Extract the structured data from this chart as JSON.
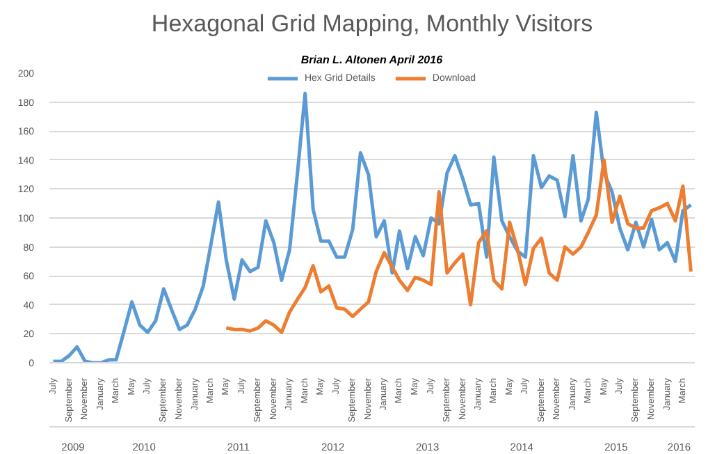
{
  "chart_data": {
    "type": "line",
    "title": "Hexagonal Grid Mapping, Monthly Visitors",
    "subtitle": "Brian L. Altonen April 2016",
    "x": [
      "2009-07",
      "2009-08",
      "2009-09",
      "2009-10",
      "2009-11",
      "2009-12",
      "2010-01",
      "2010-02",
      "2010-03",
      "2010-04",
      "2010-05",
      "2010-06",
      "2010-07",
      "2010-08",
      "2010-09",
      "2010-10",
      "2010-11",
      "2010-12",
      "2011-01",
      "2011-02",
      "2011-03",
      "2011-04",
      "2011-05",
      "2011-06",
      "2011-07",
      "2011-08",
      "2011-09",
      "2011-10",
      "2011-11",
      "2011-12",
      "2012-01",
      "2012-02",
      "2012-03",
      "2012-04",
      "2012-05",
      "2012-06",
      "2012-07",
      "2012-08",
      "2012-09",
      "2012-10",
      "2012-11",
      "2012-12",
      "2013-01",
      "2013-02",
      "2013-03",
      "2013-04",
      "2013-05",
      "2013-06",
      "2013-07",
      "2013-08",
      "2013-09",
      "2013-10",
      "2013-11",
      "2013-12",
      "2014-01",
      "2014-02",
      "2014-03",
      "2014-04",
      "2014-05",
      "2014-06",
      "2014-07",
      "2014-08",
      "2014-09",
      "2014-10",
      "2014-11",
      "2014-12",
      "2015-01",
      "2015-02",
      "2015-03",
      "2015-04",
      "2015-05",
      "2015-06",
      "2015-07",
      "2015-08",
      "2015-09",
      "2015-10",
      "2015-11",
      "2015-12",
      "2016-01",
      "2016-02",
      "2016-03",
      "2016-04"
    ],
    "series": [
      {
        "name": "Hex Grid Details",
        "color": "#5b9bd5",
        "values": [
          1,
          1,
          5,
          11,
          1,
          0,
          0,
          2,
          2,
          22,
          42,
          26,
          21,
          29,
          51,
          37,
          23,
          26,
          37,
          53,
          80,
          111,
          71,
          44,
          71,
          63,
          66,
          98,
          83,
          57,
          78,
          132,
          186,
          106,
          84,
          84,
          73,
          73,
          92,
          145,
          130,
          87,
          98,
          62,
          91,
          65,
          87,
          74,
          100,
          96,
          131,
          143,
          127,
          109,
          110,
          73,
          142,
          98,
          87,
          77,
          73,
          143,
          121,
          129,
          126,
          101,
          143,
          98,
          113,
          173,
          131,
          118,
          93,
          78,
          97,
          80,
          99,
          78,
          83,
          70,
          105,
          109
        ]
      },
      {
        "name": "Download",
        "color": "#ed7d31",
        "values": [
          null,
          null,
          null,
          null,
          null,
          null,
          null,
          null,
          null,
          null,
          null,
          null,
          null,
          null,
          null,
          null,
          null,
          null,
          null,
          null,
          null,
          null,
          24,
          23,
          23,
          22,
          24,
          29,
          26,
          21,
          35,
          44,
          52,
          67,
          49,
          53,
          38,
          37,
          32,
          37,
          42,
          63,
          76,
          66,
          57,
          50,
          59,
          57,
          54,
          118,
          62,
          69,
          75,
          40,
          83,
          91,
          57,
          51,
          97,
          78,
          54,
          79,
          86,
          62,
          57,
          80,
          75,
          80,
          90,
          102,
          140,
          97,
          115,
          96,
          93,
          93,
          105,
          107,
          110,
          98,
          122,
          63
        ]
      }
    ],
    "xlim": [
      "2009-06-16",
      "2016-04-16"
    ],
    "xticks": [
      {
        "value": "2009-07",
        "label": "July"
      },
      {
        "value": "2009-09",
        "label": "September"
      },
      {
        "value": "2009-11",
        "label": "November"
      },
      {
        "value": "2010-01",
        "label": "January"
      },
      {
        "value": "2010-03",
        "label": "March"
      },
      {
        "value": "2010-05",
        "label": "May"
      },
      {
        "value": "2010-07",
        "label": "July"
      },
      {
        "value": "2010-09",
        "label": "September"
      },
      {
        "value": "2010-11",
        "label": "November"
      },
      {
        "value": "2011-01",
        "label": "January"
      },
      {
        "value": "2011-03",
        "label": "March"
      },
      {
        "value": "2011-05",
        "label": "May"
      },
      {
        "value": "2011-07",
        "label": "July"
      },
      {
        "value": "2011-09",
        "label": "September"
      },
      {
        "value": "2011-11",
        "label": "November"
      },
      {
        "value": "2012-01",
        "label": "January"
      },
      {
        "value": "2012-03",
        "label": "March"
      },
      {
        "value": "2012-05",
        "label": "May"
      },
      {
        "value": "2012-07",
        "label": "July"
      },
      {
        "value": "2012-09",
        "label": "September"
      },
      {
        "value": "2012-11",
        "label": "November"
      },
      {
        "value": "2013-01",
        "label": "January"
      },
      {
        "value": "2013-03",
        "label": "March"
      },
      {
        "value": "2013-05",
        "label": "May"
      },
      {
        "value": "2013-07",
        "label": "July"
      },
      {
        "value": "2013-09",
        "label": "September"
      },
      {
        "value": "2013-11",
        "label": "November"
      },
      {
        "value": "2014-01",
        "label": "January"
      },
      {
        "value": "2014-03",
        "label": "March"
      },
      {
        "value": "2014-05",
        "label": "May"
      },
      {
        "value": "2014-07",
        "label": "July"
      },
      {
        "value": "2014-09",
        "label": "September"
      },
      {
        "value": "2014-11",
        "label": "November"
      },
      {
        "value": "2015-01",
        "label": "January"
      },
      {
        "value": "2015-03",
        "label": "March"
      },
      {
        "value": "2015-05",
        "label": "May"
      },
      {
        "value": "2015-07",
        "label": "July"
      },
      {
        "value": "2015-09",
        "label": "September"
      },
      {
        "value": "2015-11",
        "label": "November"
      },
      {
        "value": "2016-01",
        "label": "January"
      },
      {
        "value": "2016-03",
        "label": "March"
      }
    ],
    "annotations": [
      "2009",
      "2010",
      "2011",
      "2012",
      "2013",
      "2014",
      "2015",
      "2016"
    ],
    "ylim": [
      0,
      200
    ],
    "yticks": [
      0,
      20,
      40,
      60,
      80,
      100,
      120,
      140,
      160,
      180,
      200
    ],
    "grid": "y",
    "legend": "top"
  }
}
